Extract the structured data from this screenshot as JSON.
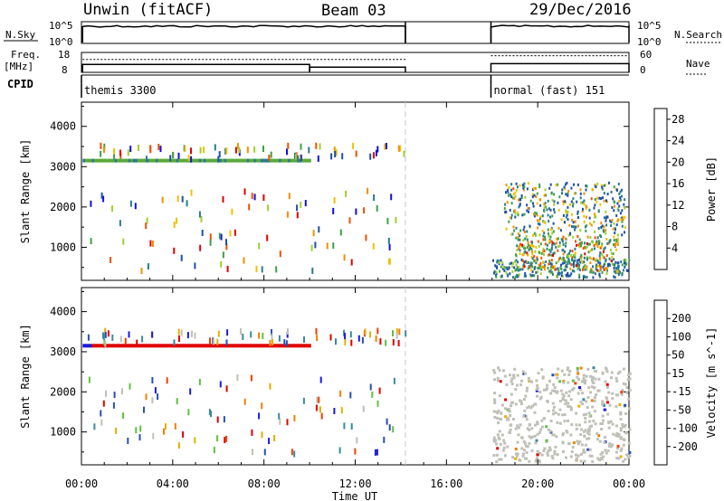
{
  "header": {
    "station": "Unwin (fitACF)",
    "beam": "Beam 03",
    "date": "29/Dec/2016"
  },
  "top_panels": {
    "nsky_label": "N.Sky",
    "nsky_ticks": [
      "10^5",
      "10^0"
    ],
    "nsearch_label": "N.Search",
    "nsearch_ticks": [
      "10^5",
      "10^0"
    ],
    "freq_label": "Freq.",
    "freq_units": "[MHz]",
    "freq_ticks": [
      "18",
      "8"
    ],
    "nave_label": "Nave",
    "nave_ticks": [
      "60",
      "0"
    ],
    "cpid_label": "CPID",
    "cpid_modes": [
      "themis 3300",
      "normal (fast) 151"
    ]
  },
  "colors": {
    "power_scale": [
      "#1010e0",
      "#1f4fa8",
      "#2a7c8a",
      "#3fa04a",
      "#9fcf30",
      "#f0c000",
      "#f09000",
      "#f05000",
      "#e00000"
    ],
    "velocity_scale": [
      "#1a1adc",
      "#2a4fb0",
      "#3a8a9a",
      "#60c040",
      "#c0c0b8",
      "#e0b000",
      "#f08000",
      "#f04000",
      "#e00000"
    ],
    "ground_scatter": "#c0c0b8"
  },
  "chart_data": [
    {
      "type": "line",
      "name": "N.Sky / N.Search",
      "x_unit": "hours UT",
      "segments": [
        [
          0.05,
          14.2
        ],
        [
          17.95,
          24.0
        ]
      ],
      "level": "10^5",
      "ylim": [
        "10^0",
        "10^5"
      ]
    },
    {
      "type": "line",
      "name": "Freq. / Nave",
      "x_unit": "hours UT",
      "freq_segments": [
        {
          "x": [
            0.05,
            10.0
          ],
          "freq_mhz": 12.0
        },
        {
          "x": [
            10.0,
            14.2
          ],
          "freq_mhz": 10.6
        },
        {
          "x": [
            17.95,
            24.0
          ],
          "freq_mhz": 12.4
        }
      ],
      "nave_segments": [
        {
          "x": [
            0.05,
            10.0
          ],
          "nave": 39
        },
        {
          "x": [
            10.0,
            14.2
          ],
          "nave": 39
        },
        {
          "x": [
            17.95,
            24.0
          ],
          "nave": 50
        }
      ],
      "freq_ylim": [
        8,
        18
      ],
      "nave_ylim": [
        0,
        60
      ]
    },
    {
      "type": "table",
      "name": "CPID",
      "modes": [
        {
          "start_hr": 0.0,
          "end_hr": 14.2,
          "label": "themis 3300"
        },
        {
          "start_hr": 17.95,
          "end_hr": 24.0,
          "label": "normal (fast) 151"
        }
      ]
    },
    {
      "type": "heatmap",
      "ylabel": "Slant Range [km]",
      "xlim": [
        0,
        24
      ],
      "ylim": [
        180,
        4600
      ],
      "yticks": [
        1000,
        2000,
        3000,
        4000
      ],
      "colorbar_label": "Power [dB]",
      "colorbar_ticks": [
        4,
        8,
        12,
        16,
        20,
        24,
        28
      ],
      "colorbar_range": [
        0,
        30
      ],
      "dashed_line_hr": 14.2,
      "features": [
        {
          "kind": "band",
          "x": [
            0.05,
            10.0
          ],
          "range_km": 3150,
          "power_db": 16
        },
        {
          "kind": "scatter",
          "x": [
            0.2,
            14.2
          ],
          "range_km": [
            3180,
            3520
          ],
          "power_db": [
            8,
            24
          ],
          "count": 70
        },
        {
          "kind": "scatter",
          "x": [
            0.3,
            14.0
          ],
          "range_km": [
            400,
            2400
          ],
          "power_db": [
            8,
            20
          ],
          "count": 90
        },
        {
          "kind": "patch",
          "x": [
            18.0,
            24.0
          ],
          "range_km": [
            250,
            700
          ],
          "power_db": [
            4,
            16
          ]
        },
        {
          "kind": "patch",
          "x": [
            19.0,
            23.5
          ],
          "range_km": [
            400,
            1300
          ],
          "power_db": [
            8,
            28
          ]
        },
        {
          "kind": "patch",
          "x": [
            18.5,
            23.8
          ],
          "range_km": [
            1300,
            2600
          ],
          "power_db": [
            4,
            24
          ]
        }
      ]
    },
    {
      "type": "heatmap",
      "ylabel": "Slant Range [km]",
      "xlabel": "Time UT",
      "xlim": [
        0,
        24
      ],
      "ylim": [
        180,
        4600
      ],
      "yticks": [
        1000,
        2000,
        3000,
        4000
      ],
      "xticks": [
        "00:00",
        "04:00",
        "08:00",
        "12:00",
        "16:00",
        "20:00",
        "00:00"
      ],
      "colorbar_label": "Velocity [m s^-1]",
      "colorbar_ticks": [
        200,
        100,
        50,
        15,
        -15,
        -50,
        -100,
        -200
      ],
      "dashed_line_hr": 14.2,
      "features": [
        {
          "kind": "band",
          "x": [
            0.05,
            10.0
          ],
          "range_km": 3150,
          "velocity_ms": -250
        },
        {
          "kind": "scatter",
          "x": [
            0.2,
            14.2
          ],
          "range_km": [
            3180,
            3520
          ],
          "velocity_ms": [
            -100,
            100
          ],
          "count": 70
        },
        {
          "kind": "scatter",
          "x": [
            0.3,
            14.0
          ],
          "range_km": [
            400,
            2400
          ],
          "velocity_ms": [
            -200,
            200
          ],
          "count": 90
        },
        {
          "kind": "ground_scatter",
          "x": [
            18.0,
            24.0
          ],
          "range_km": [
            250,
            2600
          ],
          "velocity_ms": 0
        }
      ]
    }
  ]
}
